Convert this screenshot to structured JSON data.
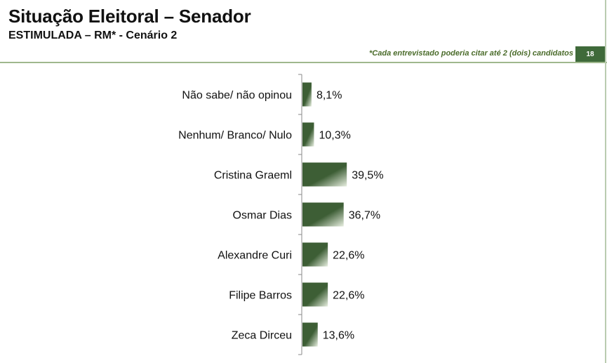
{
  "header": {
    "title": "Situação Eleitoral – Senador",
    "subtitle": "ESTIMULADA – RM* - Cenário 2",
    "note": "*Cada entrevistado poderia citar até 2 (dois) candidatos",
    "page_number": "18"
  },
  "colors": {
    "bar_dark": "#3d5e35",
    "bar_light": "#e8efe1",
    "accent": "#3f6a3a"
  },
  "chart_data": {
    "type": "bar",
    "orientation": "horizontal",
    "categories": [
      "Não sabe/ não opinou",
      "Nenhum/ Branco/ Nulo",
      "Cristina Graeml",
      "Osmar Dias",
      "Alexandre Curi",
      "Filipe Barros",
      "Zeca Dirceu"
    ],
    "values": [
      8.1,
      10.3,
      39.5,
      36.7,
      22.6,
      22.6,
      13.6
    ],
    "value_labels": [
      "8,1%",
      "10,3%",
      "39,5%",
      "36,7%",
      "22,6%",
      "22,6%",
      "13,6%"
    ],
    "xlim": [
      0,
      250
    ],
    "grid": false,
    "legend": "none"
  }
}
